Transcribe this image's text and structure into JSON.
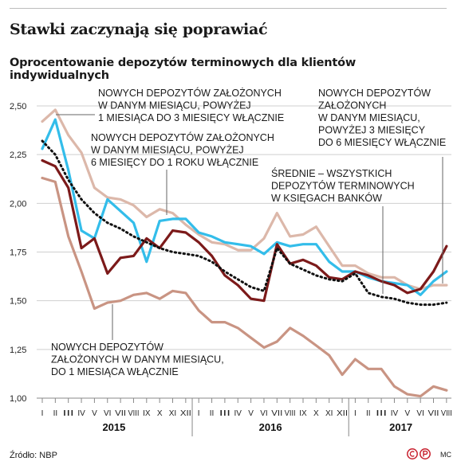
{
  "header": {
    "title": "Stawki zaczynają się poprawiać",
    "subtitle": "Oprocentowanie depozytów terminowych dla klientów indywidualnych"
  },
  "footer": {
    "source": "Źródło: NBP",
    "author": "MC",
    "icons": [
      "copyright-icon",
      "publisher-p-icon"
    ]
  },
  "chart_data": {
    "type": "line",
    "title": "Oprocentowanie depozytów terminowych dla klientów indywidualnych",
    "ylim": [
      1.0,
      2.5
    ],
    "yticks": [
      "2,50",
      "2,25",
      "2,00",
      "1,75",
      "1,50",
      "1,25",
      "1,00"
    ],
    "ytick_values": [
      2.5,
      2.25,
      2.0,
      1.75,
      1.5,
      1.25,
      1.0
    ],
    "grid": "horizontal",
    "x": [
      "I",
      "II",
      "III",
      "IV",
      "V",
      "VI",
      "VII",
      "VIII",
      "IX",
      "X",
      "XI",
      "XII",
      "I",
      "II",
      "III",
      "IV",
      "V",
      "VI",
      "VII",
      "VIII",
      "IX",
      "X",
      "XI",
      "XII",
      "I",
      "II",
      "III",
      "IV",
      "V",
      "VI",
      "VII",
      "VIII"
    ],
    "years": [
      {
        "label": "2015",
        "start": 0,
        "end": 11
      },
      {
        "label": "2016",
        "start": 12,
        "end": 23
      },
      {
        "label": "2017",
        "start": 24,
        "end": 31
      }
    ],
    "series": [
      {
        "id": "do-1-miesiaca",
        "name": "NOWYCH DEPOZYTÓW ZAŁOŻONYCH W DANYM MIESIĄCU, DO 1 MIESIĄCA WŁĄCZNIE",
        "label_lines": [
          "NOWYCH DEPOZYTÓW",
          "ZAŁOŻONYCH W DANYM MIESIĄCU,",
          "DO 1 MIESIĄCA WŁĄCZNIE"
        ],
        "color": "#c99483",
        "dash": "",
        "values": [
          2.13,
          2.11,
          1.83,
          1.65,
          1.46,
          1.49,
          1.5,
          1.53,
          1.54,
          1.51,
          1.55,
          1.54,
          1.45,
          1.39,
          1.39,
          1.36,
          1.31,
          1.26,
          1.29,
          1.36,
          1.32,
          1.27,
          1.22,
          1.12,
          1.2,
          1.15,
          1.15,
          1.06,
          1.02,
          1.01,
          1.06,
          1.04
        ]
      },
      {
        "id": "1-3-miesiecy",
        "name": "NOWYCH DEPOZYTÓW ZAŁOŻONYCH W DANYM MIESIĄCU, POWYŻEJ 1 MIESIĄCA DO 3 MIESIĘCY WŁĄCZNIE",
        "label_lines": [
          "NOWYCH DEPOZYTÓW ZAŁOŻONYCH",
          "W DANYM MIESIĄCU, POWYŻEJ",
          "1 MIESIĄCA DO 3 MIESIĘCY WŁĄCZNIE"
        ],
        "color": "#33bdea",
        "dash": "",
        "values": [
          2.28,
          2.43,
          2.17,
          1.86,
          1.82,
          2.02,
          1.96,
          1.9,
          1.7,
          1.91,
          1.92,
          1.92,
          1.85,
          1.83,
          1.8,
          1.79,
          1.78,
          1.74,
          1.8,
          1.78,
          1.79,
          1.79,
          1.7,
          1.65,
          1.65,
          1.62,
          1.6,
          1.59,
          1.58,
          1.53,
          1.6,
          1.65
        ]
      },
      {
        "id": "3-6-miesiecy",
        "name": "NOWYCH DEPOZYTÓW ZAŁOŻONYCH W DANYM MIESIĄCU, POWYŻEJ 3 MIESIĘCY DO 6 MIESIĘCY WŁĄCZNIE",
        "label_lines": [
          "NOWYCH DEPOZYTÓW",
          "ZAŁOŻONYCH",
          "W DANYM MIESIĄCU,",
          "POWYŻEJ 3 MIESIĘCY",
          "DO 6 MIESIĘCY WŁĄCZNIE"
        ],
        "color": "#dcb8aa",
        "dash": "",
        "values": [
          2.42,
          2.48,
          2.35,
          2.26,
          2.08,
          2.03,
          2.02,
          1.99,
          1.93,
          1.97,
          1.95,
          1.89,
          1.84,
          1.8,
          1.79,
          1.76,
          1.76,
          1.82,
          1.95,
          1.83,
          1.84,
          1.88,
          1.78,
          1.68,
          1.68,
          1.64,
          1.62,
          1.62,
          1.58,
          1.56,
          1.58,
          1.58
        ]
      },
      {
        "id": "6-12-miesiecy",
        "name": "NOWYCH DEPOZYTÓW ZAŁOŻONYCH W DANYM MIESIĄCU, POWYŻEJ 6 MIESIĘCY DO 1 ROKU WŁĄCZNIE",
        "label_lines": [
          "NOWYCH DEPOZYTÓW ZAŁOŻONYCH",
          "W DANYM MIESIĄCU, POWYŻEJ",
          "6 MIESIĘCY DO 1 ROKU WŁĄCZNIE"
        ],
        "color": "#7c1a1a",
        "dash": "",
        "values": [
          2.22,
          2.19,
          2.08,
          1.77,
          1.82,
          1.64,
          1.72,
          1.73,
          1.82,
          1.77,
          1.86,
          1.85,
          1.8,
          1.73,
          1.63,
          1.58,
          1.51,
          1.5,
          1.79,
          1.69,
          1.71,
          1.68,
          1.62,
          1.61,
          1.65,
          1.63,
          1.6,
          1.58,
          1.54,
          1.56,
          1.65,
          1.78
        ]
      },
      {
        "id": "srednie",
        "name": "ŚREDNIE – WSZYSTKICH DEPOZYTÓW TERMINOWYCH W KSIĘGACH BANKÓW",
        "label_lines": [
          "ŚREDNIE – WSZYSTKICH",
          "DEPOZYTÓW TERMINOWYCH",
          "W KSIĘGACH BANKÓW"
        ],
        "color": "#111111",
        "dash": "1.5 4",
        "values": [
          2.32,
          2.25,
          2.12,
          2.02,
          1.95,
          1.9,
          1.87,
          1.83,
          1.8,
          1.77,
          1.75,
          1.74,
          1.73,
          1.7,
          1.65,
          1.61,
          1.57,
          1.55,
          1.77,
          1.69,
          1.66,
          1.63,
          1.61,
          1.6,
          1.64,
          1.54,
          1.52,
          1.51,
          1.49,
          1.48,
          1.48,
          1.49
        ]
      }
    ]
  }
}
